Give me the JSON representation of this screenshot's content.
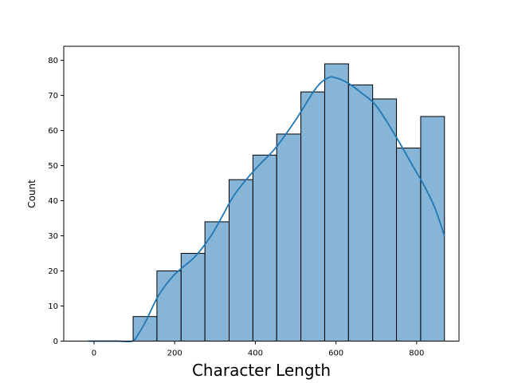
{
  "chart_data": {
    "type": "bar",
    "subtype": "histogram-with-kde",
    "xlabel": "Character Length",
    "ylabel": "Count",
    "xlim": [
      -75,
      905
    ],
    "ylim": [
      0,
      84
    ],
    "xticks": [
      0,
      200,
      400,
      600,
      800
    ],
    "yticks": [
      0,
      10,
      20,
      30,
      40,
      50,
      60,
      70,
      80
    ],
    "grid": false,
    "bins": [
      {
        "start": 97,
        "end": 156,
        "count": 7
      },
      {
        "start": 156,
        "end": 216,
        "count": 20
      },
      {
        "start": 216,
        "end": 275,
        "count": 25
      },
      {
        "start": 275,
        "end": 335,
        "count": 34
      },
      {
        "start": 335,
        "end": 394,
        "count": 46
      },
      {
        "start": 394,
        "end": 453,
        "count": 53
      },
      {
        "start": 453,
        "end": 513,
        "count": 59
      },
      {
        "start": 513,
        "end": 572,
        "count": 71
      },
      {
        "start": 572,
        "end": 631,
        "count": 79
      },
      {
        "start": 631,
        "end": 691,
        "count": 73
      },
      {
        "start": 691,
        "end": 750,
        "count": 69
      },
      {
        "start": 750,
        "end": 810,
        "count": 55
      },
      {
        "start": 810,
        "end": 869,
        "count": 64
      }
    ],
    "kde": {
      "x": [
        -16,
        20,
        60,
        95,
        110,
        130,
        160,
        200,
        250,
        290,
        320,
        350,
        400,
        450,
        500,
        550,
        580,
        600,
        630,
        660,
        700,
        750,
        790,
        820,
        845,
        869
      ],
      "y": [
        0,
        0,
        0,
        0,
        2,
        6,
        13,
        19,
        24,
        30,
        36,
        42,
        49,
        55,
        63,
        72,
        75,
        75,
        73.5,
        71,
        67,
        58,
        50,
        44,
        38,
        30
      ]
    },
    "colors": {
      "bar_fill": "#87b5d8",
      "bar_edge": "#000000",
      "kde_line": "#1f77b4"
    }
  }
}
